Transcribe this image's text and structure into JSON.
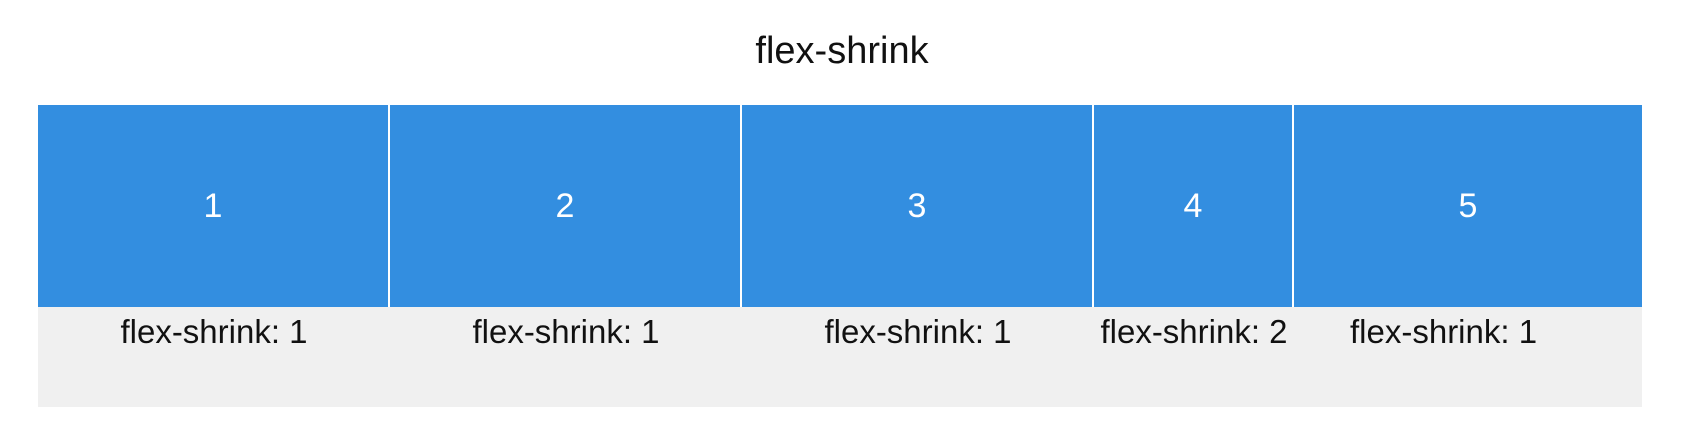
{
  "title": "flex-shrink",
  "items": [
    {
      "number": "1",
      "label": "flex-shrink: 1"
    },
    {
      "number": "2",
      "label": "flex-shrink: 1"
    },
    {
      "number": "3",
      "label": "flex-shrink: 1"
    },
    {
      "number": "4",
      "label": "flex-shrink: 2"
    },
    {
      "number": "5",
      "label": "flex-shrink: 1"
    }
  ],
  "colors": {
    "box": "#338ee0",
    "container": "#f0f0f0",
    "text": "#111111"
  }
}
